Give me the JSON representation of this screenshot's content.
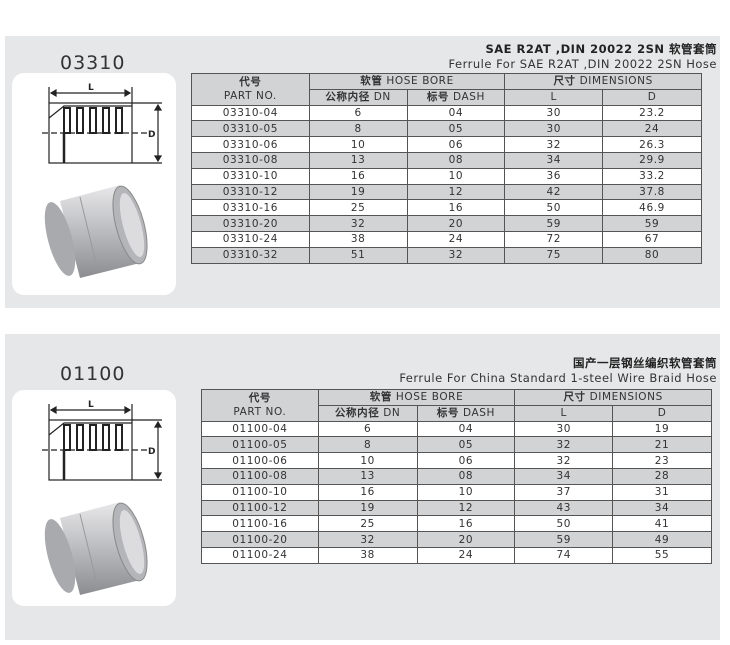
{
  "sections": [
    {
      "code": "03310",
      "title_zh": "SAE R2AT ,DIN 20022 2SN 软管套筒",
      "title_en": "Ferrule For  SAE R2AT ,DIN 20022 2SN Hose",
      "headers": {
        "part_zh": "代号",
        "part_en": "PART NO.",
        "bore_zh": "软管",
        "bore_en": "HOSE BORE",
        "dim_zh": "尺寸",
        "dim_en": "DIMENSIONS",
        "dn_zh": "公称内径",
        "dn_en": "DN",
        "dash_zh": "标号",
        "dash_en": "DASH",
        "l": "L",
        "d": "D"
      },
      "diagram_labels": {
        "l": "L",
        "d": "D"
      },
      "rows": [
        [
          "03310-04",
          "6",
          "04",
          "30",
          "23.2"
        ],
        [
          "03310-05",
          "8",
          "05",
          "30",
          "24"
        ],
        [
          "03310-06",
          "10",
          "06",
          "32",
          "26.3"
        ],
        [
          "03310-08",
          "13",
          "08",
          "34",
          "29.9"
        ],
        [
          "03310-10",
          "16",
          "10",
          "36",
          "33.2"
        ],
        [
          "03310-12",
          "19",
          "12",
          "42",
          "37.8"
        ],
        [
          "03310-16",
          "25",
          "16",
          "50",
          "46.9"
        ],
        [
          "03310-20",
          "32",
          "20",
          "59",
          "59"
        ],
        [
          "03310-24",
          "38",
          "24",
          "72",
          "67"
        ],
        [
          "03310-32",
          "51",
          "32",
          "75",
          "80"
        ]
      ]
    },
    {
      "code": "01100",
      "title_zh": "国产一层钢丝编织软管套筒",
      "title_en": "Ferrule For  China Standard 1-steel Wire Braid Hose",
      "headers": {
        "part_zh": "代号",
        "part_en": "PART NO.",
        "bore_zh": "软管",
        "bore_en": "HOSE BORE",
        "dim_zh": "尺寸",
        "dim_en": "DIMENSIONS",
        "dn_zh": "公称内径",
        "dn_en": "DN",
        "dash_zh": "标号",
        "dash_en": "DASH",
        "l": "L",
        "d": "D"
      },
      "diagram_labels": {
        "l": "L",
        "d": "D"
      },
      "rows": [
        [
          "01100-04",
          "6",
          "04",
          "30",
          "19"
        ],
        [
          "01100-05",
          "8",
          "05",
          "32",
          "21"
        ],
        [
          "01100-06",
          "10",
          "06",
          "32",
          "23"
        ],
        [
          "01100-08",
          "13",
          "08",
          "34",
          "28"
        ],
        [
          "01100-10",
          "16",
          "10",
          "37",
          "31"
        ],
        [
          "01100-12",
          "19",
          "12",
          "43",
          "34"
        ],
        [
          "01100-16",
          "25",
          "16",
          "50",
          "41"
        ],
        [
          "01100-20",
          "32",
          "20",
          "59",
          "49"
        ],
        [
          "01100-24",
          "38",
          "24",
          "74",
          "55"
        ]
      ]
    }
  ]
}
